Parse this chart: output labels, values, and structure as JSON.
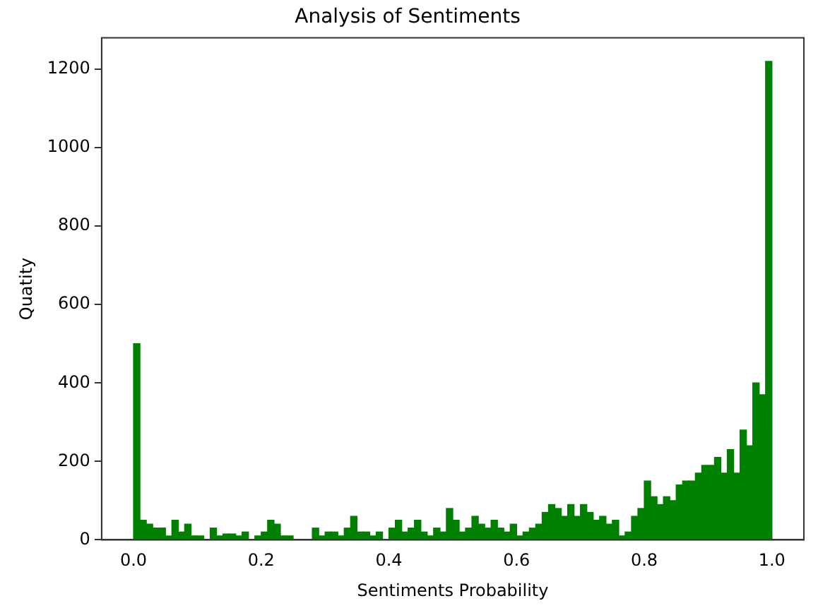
{
  "chart_data": {
    "type": "histogram",
    "title": "Analysis of Sentiments",
    "xlabel": "Sentiments Probability",
    "ylabel": "Quatity",
    "color": "#008000",
    "bins": [
      0,
      0.01,
      0.02,
      0.03,
      0.04,
      0.05,
      0.06,
      0.07,
      0.08,
      0.09,
      0.1,
      0.11,
      0.12,
      0.13,
      0.14,
      0.15,
      0.16,
      0.17,
      0.18,
      0.19,
      0.2,
      0.21,
      0.22,
      0.23,
      0.24,
      0.25,
      0.26,
      0.27,
      0.28,
      0.29,
      0.3,
      0.31,
      0.32,
      0.33,
      0.34,
      0.35,
      0.36,
      0.37,
      0.38,
      0.39,
      0.4,
      0.41,
      0.42,
      0.43,
      0.44,
      0.45,
      0.46,
      0.47,
      0.48,
      0.49,
      0.5,
      0.51,
      0.52,
      0.53,
      0.54,
      0.55,
      0.56,
      0.57,
      0.58,
      0.59,
      0.6,
      0.61,
      0.62,
      0.63,
      0.64,
      0.65,
      0.66,
      0.67,
      0.68,
      0.69,
      0.7,
      0.71,
      0.72,
      0.73,
      0.74,
      0.75,
      0.76,
      0.77,
      0.78,
      0.79,
      0.8,
      0.81,
      0.82,
      0.83,
      0.84,
      0.85,
      0.86,
      0.87,
      0.88,
      0.89,
      0.9,
      0.91,
      0.92,
      0.93,
      0.94,
      0.95,
      0.96,
      0.97,
      0.98,
      0.99,
      1
    ],
    "values": [
      500,
      50,
      40,
      30,
      30,
      10,
      50,
      20,
      40,
      10,
      10,
      0,
      30,
      10,
      15,
      15,
      10,
      20,
      0,
      10,
      20,
      50,
      40,
      10,
      10,
      0,
      0,
      0,
      30,
      10,
      20,
      20,
      10,
      30,
      60,
      20,
      20,
      10,
      20,
      0,
      30,
      50,
      20,
      30,
      50,
      20,
      10,
      30,
      20,
      80,
      50,
      20,
      30,
      60,
      40,
      30,
      50,
      30,
      20,
      40,
      10,
      20,
      30,
      40,
      70,
      90,
      80,
      60,
      90,
      60,
      90,
      70,
      50,
      60,
      40,
      50,
      10,
      20,
      60,
      80,
      150,
      110,
      90,
      110,
      100,
      140,
      150,
      150,
      170,
      190,
      190,
      210,
      170,
      230,
      170,
      280,
      240,
      400,
      370,
      1220
    ],
    "xlim": [
      -0.05,
      1.05
    ],
    "xticks": [
      {
        "value": 0,
        "label": "0.0"
      },
      {
        "value": 0.2,
        "label": "0.2"
      },
      {
        "value": 0.4,
        "label": "0.4"
      },
      {
        "value": 0.6,
        "label": "0.6"
      },
      {
        "value": 0.8,
        "label": "0.8"
      },
      {
        "value": 1,
        "label": "1.0"
      }
    ],
    "ylim": [
      0,
      1280
    ],
    "yticks": [
      0,
      200,
      400,
      600,
      800,
      1000,
      1200
    ],
    "grid": false
  }
}
